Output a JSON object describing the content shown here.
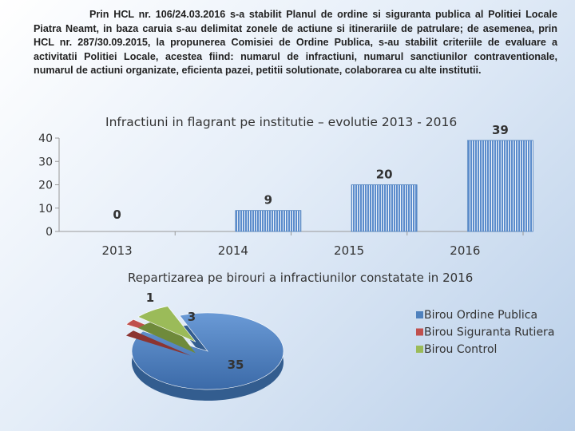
{
  "intro_text": "Prin HCL nr. 106/24.03.2016 s-a stabilit Planul de ordine si siguranta publica al Politiei Locale Piatra Neamt, in baza caruia s-au delimitat zonele de actiune si itinerariile de patrulare; de asemenea, prin HCL nr. 287/30.09.2015, la propunerea Comisiei de Ordine Publica, s-au stabilit criteriile de evaluare a activitatii Politiei Locale, acestea  fiind: numarul de infractiuni, numarul sanctiunilor contraventionale, numarul de actiuni organizate, eficienta pazei, petitii solutionate, colaborarea cu alte institutii.",
  "chart_data": [
    {
      "type": "bar",
      "title": "Infractiuni in flagrant  pe institutie – evolutie 2013 - 2016",
      "categories": [
        "2013",
        "2014",
        "2015",
        "2016"
      ],
      "values": [
        0,
        9,
        20,
        39
      ],
      "data_labels": [
        "0",
        "9",
        "20",
        "39"
      ],
      "y_ticks": [
        "0",
        "10",
        "20",
        "30",
        "40"
      ],
      "ylim": [
        0,
        40
      ],
      "grid": false,
      "bar_color": "#4f81bd"
    },
    {
      "type": "pie",
      "title": "Repartizarea pe birouri a infractiunilor constatate in 2016",
      "categories": [
        "Birou Ordine Publica",
        "Birou Siguranta Rutiera",
        "Birou Control"
      ],
      "values": [
        35,
        1,
        3
      ],
      "data_labels": [
        "35",
        "1",
        "3"
      ],
      "colors": [
        "#4f81bd",
        "#c0504d",
        "#9bbb59"
      ],
      "legend_position": "right",
      "style": "3d-exploded"
    }
  ]
}
